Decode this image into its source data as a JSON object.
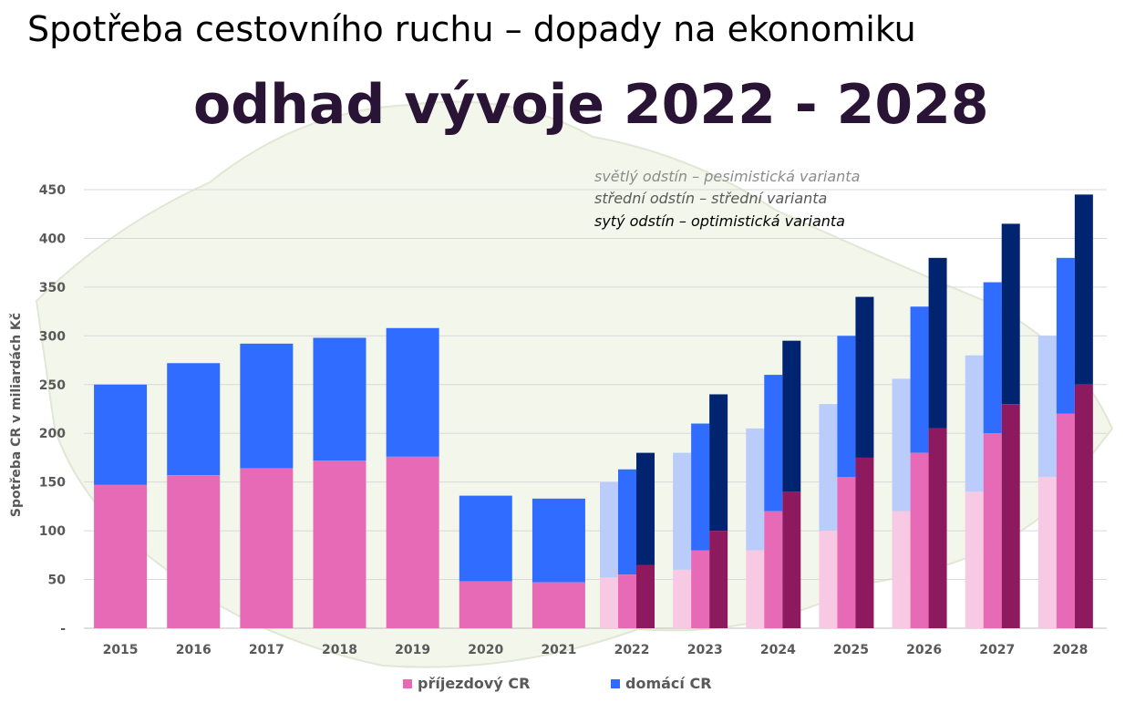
{
  "title": "Spotřeba cestovního ruchu – dopady na ekonomiku",
  "subtitle": "odhad vývoje 2022 - 2028",
  "notes": {
    "light": "světlý odstín – pesimistická varianta",
    "medium": "střední odstín – střední varianta",
    "dark": "sytý odstín – optimistická varianta"
  },
  "legend": {
    "arrival": "příjezdový CR",
    "domestic": "domácí CR"
  },
  "colors": {
    "arrival": "#e76ab7",
    "domestic": "#2f6cff",
    "pessimistic_arrival": "#f7c9e3",
    "pessimistic_domestic": "#b9ccfa",
    "optimistic_arrival": "#8d1a5f",
    "optimistic_domestic": "#002470"
  },
  "chart_data": {
    "type": "bar",
    "stacked": true,
    "ylabel": "Spotřeba CR v miliardách Kč",
    "xlabel": "",
    "ylim": [
      0,
      450
    ],
    "yticks": [
      "-",
      "50",
      "100",
      "150",
      "200",
      "250",
      "300",
      "350",
      "400",
      "450"
    ],
    "grid": true,
    "legend_position": "bottom",
    "categories": [
      "2015",
      "2016",
      "2017",
      "2018",
      "2019",
      "2020",
      "2021",
      "2022",
      "2023",
      "2024",
      "2025",
      "2026",
      "2027",
      "2028"
    ],
    "historical": {
      "years": [
        "2015",
        "2016",
        "2017",
        "2018",
        "2019",
        "2020",
        "2021"
      ],
      "arrival": [
        147,
        157,
        164,
        172,
        176,
        48,
        47
      ],
      "total": [
        250,
        272,
        292,
        298,
        308,
        136,
        133
      ]
    },
    "forecast": {
      "years": [
        "2022",
        "2023",
        "2024",
        "2025",
        "2026",
        "2027",
        "2028"
      ],
      "pessimistic": {
        "arrival": [
          52,
          60,
          80,
          100,
          120,
          140,
          155
        ],
        "total": [
          150,
          180,
          205,
          230,
          256,
          280,
          300
        ]
      },
      "medium": {
        "arrival": [
          55,
          80,
          120,
          155,
          180,
          200,
          220
        ],
        "total": [
          163,
          210,
          260,
          300,
          330,
          355,
          380
        ]
      },
      "optimistic": {
        "arrival": [
          65,
          100,
          140,
          175,
          205,
          230,
          250
        ],
        "total": [
          180,
          240,
          295,
          340,
          380,
          415,
          445
        ]
      }
    }
  }
}
